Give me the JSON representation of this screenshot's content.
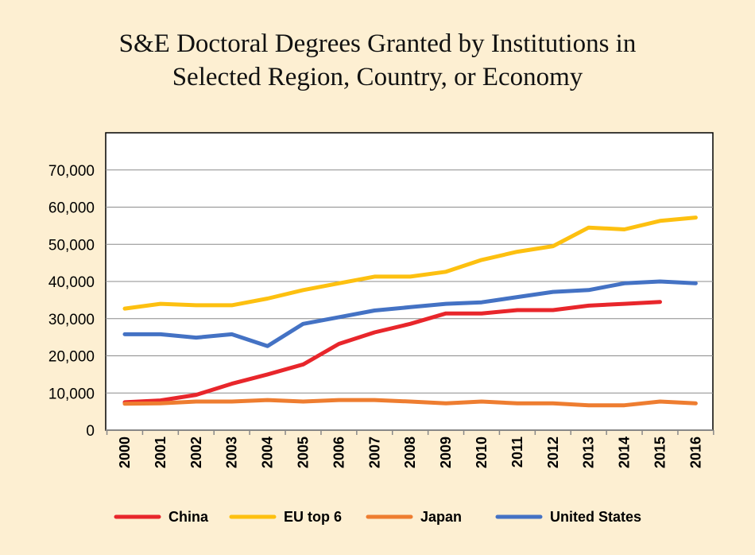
{
  "chart_data": {
    "type": "line",
    "title_lines": [
      "S&E Doctoral Degrees Granted by Institutions in",
      "Selected Region, Country, or Economy"
    ],
    "x": [
      "2000",
      "2001",
      "2002",
      "2003",
      "2004",
      "2005",
      "2006",
      "2007",
      "2008",
      "2009",
      "2010",
      "2011",
      "2012",
      "2013",
      "2014",
      "2015",
      "2016"
    ],
    "ylim": [
      0,
      80000
    ],
    "yticks": [
      0,
      10000,
      20000,
      30000,
      40000,
      50000,
      60000,
      70000
    ],
    "ytick_labels": [
      "0",
      "10,000",
      "20,000",
      "30,000",
      "40,000",
      "50,000",
      "60,000",
      "70,000"
    ],
    "grid": true,
    "legend_position": "bottom",
    "series": [
      {
        "name": "China",
        "color": "#e8262b",
        "values": [
          7500,
          8000,
          9500,
          12500,
          15000,
          17700,
          23200,
          26300,
          28600,
          31400,
          31400,
          32300,
          32300,
          33500,
          34000,
          34500,
          null
        ]
      },
      {
        "name": "EU top 6",
        "color": "#fdc010",
        "values": [
          32700,
          34000,
          33600,
          33600,
          35400,
          37700,
          39500,
          41300,
          41300,
          42600,
          45800,
          48000,
          49500,
          54500,
          54000,
          56300,
          57200
        ]
      },
      {
        "name": "Japan",
        "color": "#ee7d30",
        "values": [
          7100,
          7200,
          7700,
          7700,
          8100,
          7700,
          8100,
          8100,
          7700,
          7200,
          7700,
          7200,
          7200,
          6700,
          6700,
          7700,
          7200
        ]
      },
      {
        "name": "United States",
        "color": "#4472c4",
        "values": [
          25800,
          25800,
          24900,
          25800,
          22600,
          28600,
          30400,
          32200,
          33100,
          34000,
          34400,
          35800,
          37200,
          37700,
          39500,
          40000,
          39500
        ]
      }
    ]
  }
}
